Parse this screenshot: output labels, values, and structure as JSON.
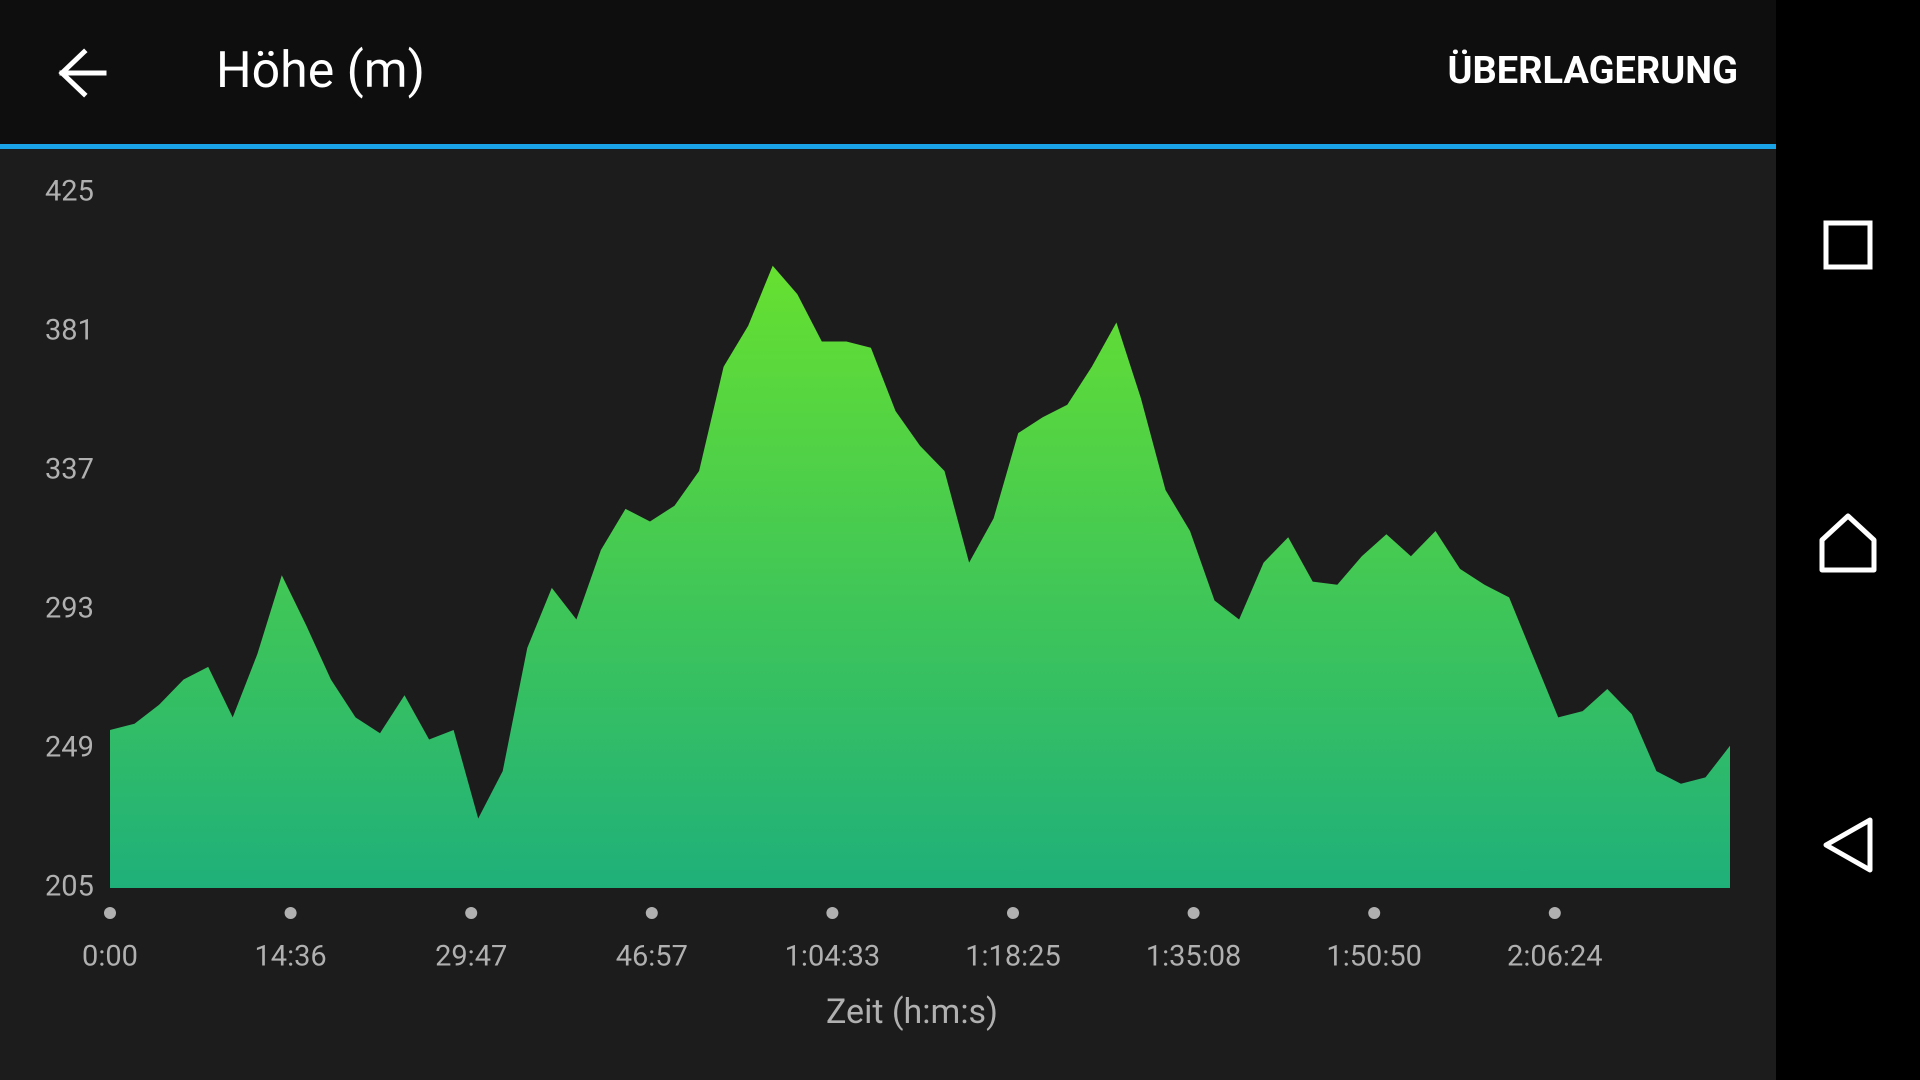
{
  "header": {
    "title": "Höhe (m)",
    "action": "ÜBERLAGERUNG"
  },
  "chart_data": {
    "type": "area",
    "values": [
      255,
      257,
      263,
      271,
      275,
      259,
      279,
      304,
      288,
      271,
      259,
      254,
      266,
      252,
      255,
      227,
      242,
      281,
      300,
      290,
      312,
      325,
      321,
      326,
      337,
      370,
      383,
      402,
      393,
      378,
      378,
      376,
      356,
      345,
      337,
      308,
      322,
      349,
      354,
      358,
      370,
      384,
      360,
      331,
      318,
      296,
      290,
      308,
      316,
      302,
      301,
      310,
      317,
      310,
      318,
      306,
      301,
      297,
      278,
      259,
      261,
      268,
      260,
      242,
      238,
      240,
      250
    ],
    "xtick_labels": [
      "0:00",
      "14:36",
      "29:47",
      "46:57",
      "1:04:33",
      "1:18:25",
      "1:35:08",
      "1:50:50",
      "2:06:24"
    ],
    "xlabel": "Zeit (h:m:s)",
    "ylim": [
      205,
      425
    ],
    "yticks": [
      205,
      249,
      293,
      337,
      381,
      425
    ],
    "colors": {
      "top": "#66e030",
      "bottom": "#1fb07a"
    }
  }
}
